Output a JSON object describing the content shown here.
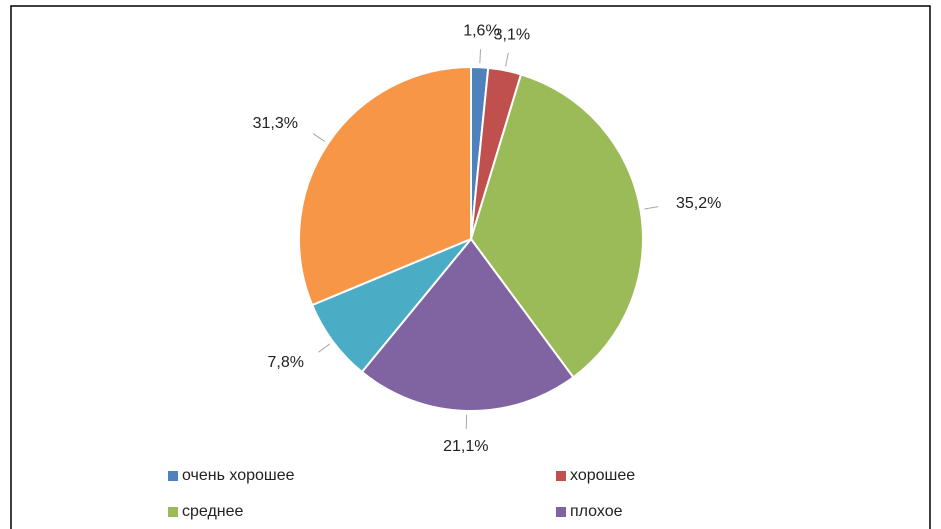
{
  "chart_data": {
    "type": "pie",
    "categories": [
      "очень хорошее",
      "хорошее",
      "среднее",
      "плохое",
      null,
      null
    ],
    "values": [
      1.6,
      3.1,
      35.2,
      21.1,
      7.8,
      31.3
    ],
    "value_labels": [
      "1,6%",
      "3,1%",
      "35,2%",
      "21,1%",
      "7,8%",
      "31,3%"
    ],
    "colors": [
      "#4f81bd",
      "#c0504d",
      "#9bbb59",
      "#8064a2",
      "#4bacc6",
      "#f79646"
    ]
  }
}
